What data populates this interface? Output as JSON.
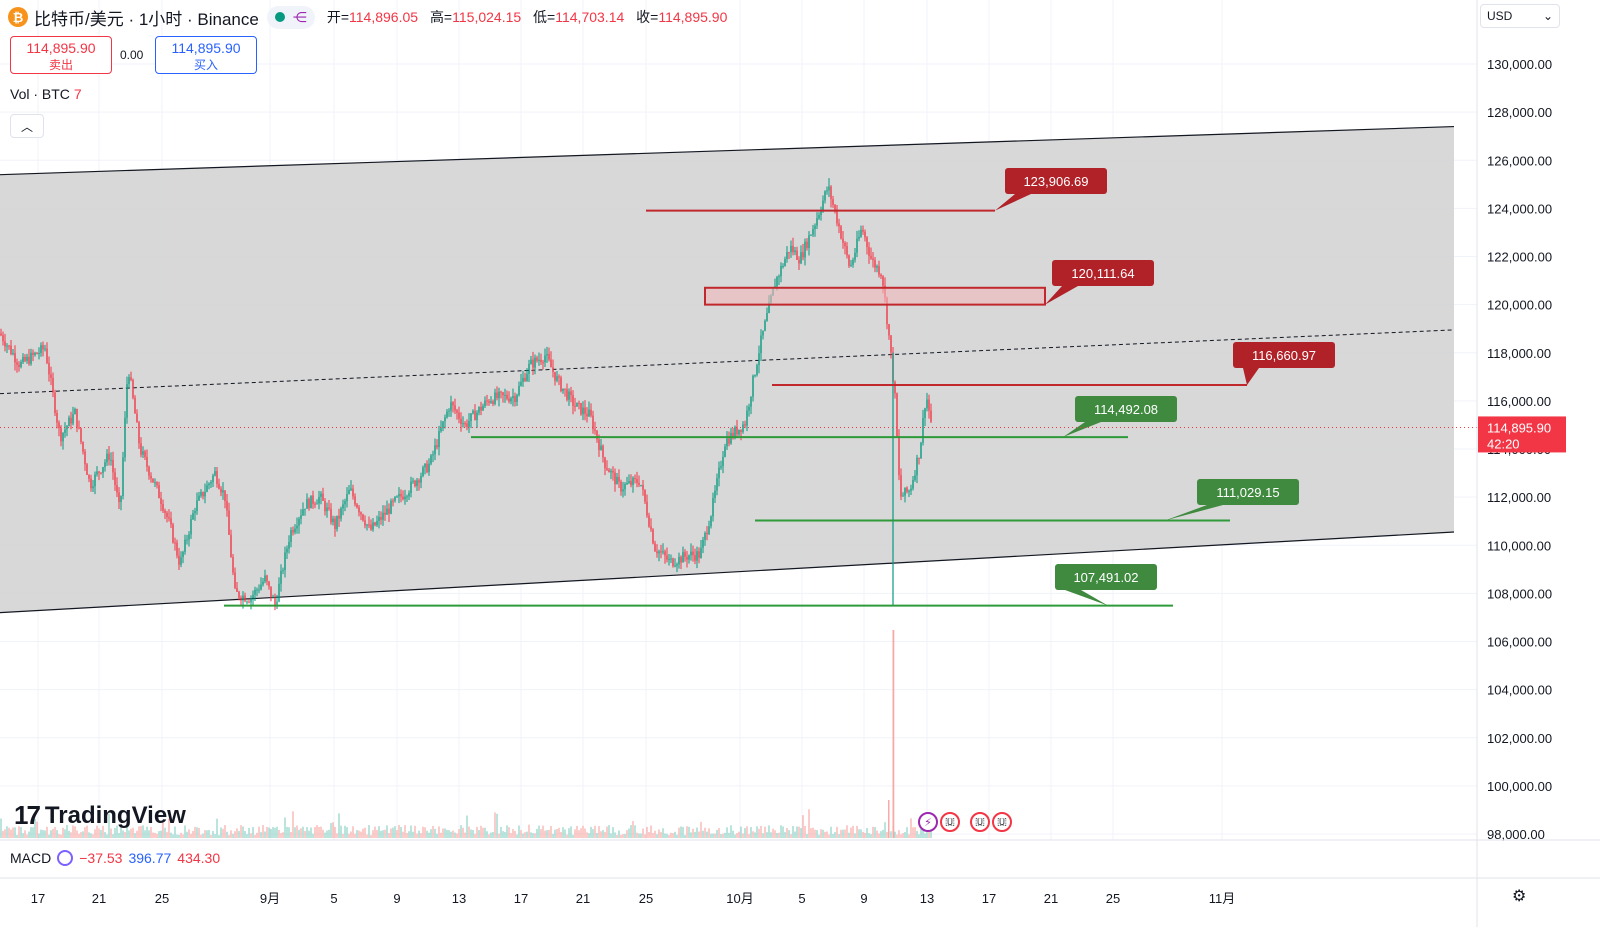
{
  "header": {
    "coin_icon": "bitcoin-icon",
    "symbol": "比特币/美元 · 1小时 · Binance",
    "open_label": "开=",
    "open": "114,896.05",
    "high_label": "高=",
    "high": "115,024.15",
    "low_label": "低=",
    "low": "114,703.14",
    "close_label": "收=",
    "close": "114,895.90"
  },
  "trade": {
    "sell_price": "114,895.90",
    "sell_label": "卖出",
    "spread": "0.00",
    "buy_price": "114,895.90",
    "buy_label": "买入"
  },
  "volume": {
    "label": "Vol · BTC",
    "value": "7"
  },
  "currency": "USD",
  "macd": {
    "label": "MACD",
    "v1": "−37.53",
    "v2": "396.77",
    "v3": "434.30"
  },
  "logo": {
    "text": "TradingView"
  },
  "colors": {
    "up": "#089981",
    "down": "#f23645",
    "channel_fill": "#d1d1d1",
    "resistance": "#c0282d",
    "support": "#2e9a3a"
  },
  "chart_data": {
    "type": "candlestick",
    "title": "",
    "y_axis": {
      "ticks": [
        "130,000.00",
        "128,000.00",
        "126,000.00",
        "124,000.00",
        "122,000.00",
        "120,000.00",
        "118,000.00",
        "116,000.00",
        "114,000.00",
        "112,000.00",
        "110,000.00",
        "108,000.00",
        "106,000.00",
        "104,000.00",
        "102,000.00",
        "100,000.00",
        "98,000.00"
      ],
      "range": [
        97700,
        131000
      ]
    },
    "x_axis": {
      "ticks": [
        "17",
        "21",
        "25",
        "9月",
        "5",
        "9",
        "13",
        "17",
        "21",
        "25",
        "10月",
        "5",
        "9",
        "13",
        "17",
        "21",
        "25",
        "11月"
      ]
    },
    "current_price": {
      "value": "114,895.90",
      "countdown": "42:20"
    },
    "price_path": [
      [
        0,
        118800
      ],
      [
        20,
        117500
      ],
      [
        45,
        118200
      ],
      [
        60,
        114500
      ],
      [
        75,
        115500
      ],
      [
        90,
        112500
      ],
      [
        110,
        113800
      ],
      [
        120,
        111300
      ],
      [
        128,
        117500
      ],
      [
        140,
        114000
      ],
      [
        150,
        113000
      ],
      [
        162,
        111800
      ],
      [
        170,
        110800
      ],
      [
        180,
        109200
      ],
      [
        195,
        111600
      ],
      [
        215,
        113000
      ],
      [
        225,
        112000
      ],
      [
        235,
        108000
      ],
      [
        250,
        107800
      ],
      [
        265,
        108600
      ],
      [
        275,
        107500
      ],
      [
        290,
        110500
      ],
      [
        305,
        111700
      ],
      [
        320,
        112000
      ],
      [
        335,
        110800
      ],
      [
        350,
        112300
      ],
      [
        370,
        110600
      ],
      [
        395,
        111800
      ],
      [
        410,
        112400
      ],
      [
        430,
        113400
      ],
      [
        450,
        115900
      ],
      [
        465,
        115000
      ],
      [
        490,
        116100
      ],
      [
        515,
        116200
      ],
      [
        530,
        117500
      ],
      [
        545,
        117900
      ],
      [
        558,
        116800
      ],
      [
        575,
        115800
      ],
      [
        590,
        115400
      ],
      [
        605,
        113400
      ],
      [
        620,
        112400
      ],
      [
        640,
        112700
      ],
      [
        655,
        109900
      ],
      [
        670,
        109300
      ],
      [
        690,
        109600
      ],
      [
        700,
        109600
      ],
      [
        712,
        111500
      ],
      [
        725,
        114300
      ],
      [
        745,
        115100
      ],
      [
        760,
        118300
      ],
      [
        775,
        120900
      ],
      [
        790,
        122400
      ],
      [
        800,
        121900
      ],
      [
        815,
        123400
      ],
      [
        828,
        124900
      ],
      [
        838,
        123400
      ],
      [
        850,
        121500
      ],
      [
        862,
        123200
      ],
      [
        872,
        121800
      ],
      [
        882,
        121300
      ],
      [
        890,
        118300
      ],
      [
        895,
        116100
      ],
      [
        900,
        112000
      ],
      [
        910,
        112300
      ],
      [
        920,
        114000
      ],
      [
        926,
        116300
      ],
      [
        932,
        114900
      ]
    ],
    "volume_spike": {
      "x_label": "10月10日",
      "note": "volume spike"
    },
    "channel": {
      "upper": [
        [
          0,
          125400
        ],
        [
          1454,
          127400
        ]
      ],
      "lower": [
        [
          0,
          107200
        ],
        [
          1454,
          110550
        ]
      ],
      "mid": [
        [
          0,
          116300
        ],
        [
          1454,
          118950
        ]
      ]
    },
    "levels": [
      {
        "label": "123,906.69",
        "value": 123906.69,
        "kind": "resistance"
      },
      {
        "label": "120,111.64",
        "value": 120111.64,
        "kind": "resistance-zone"
      },
      {
        "label": "116,660.97",
        "value": 116660.97,
        "kind": "resistance"
      },
      {
        "label": "114,492.08",
        "value": 114492.08,
        "kind": "support"
      },
      {
        "label": "111,029.15",
        "value": 111029.15,
        "kind": "support"
      },
      {
        "label": "107,491.02",
        "value": 107491.02,
        "kind": "support"
      }
    ]
  }
}
